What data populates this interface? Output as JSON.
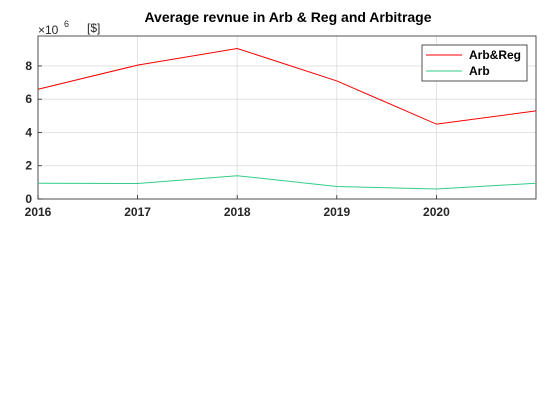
{
  "chart_data": {
    "type": "line",
    "title": "Average revnue in Arb & Reg and Arbitrage",
    "xlabel": "",
    "ylabel": "",
    "y_exponent_base": "×10",
    "y_exponent_power": "6",
    "y_unit": "[$]",
    "xlim": [
      2016,
      2021
    ],
    "ylim": [
      0,
      9.8
    ],
    "xticks": [
      2016,
      2017,
      2018,
      2019,
      2020
    ],
    "yticks": [
      0,
      2,
      4,
      6,
      8
    ],
    "grid": true,
    "legend_position": "top-right",
    "x": [
      2016,
      2017,
      2018,
      2019,
      2020,
      2021
    ],
    "series": [
      {
        "name": "Arb&Reg",
        "color": "#ff0000",
        "values": [
          6.6,
          8.05,
          9.05,
          7.1,
          4.5,
          5.3
        ]
      },
      {
        "name": "Arb",
        "color": "#33cc88",
        "values": [
          0.95,
          0.93,
          1.4,
          0.75,
          0.6,
          0.95
        ]
      }
    ]
  }
}
